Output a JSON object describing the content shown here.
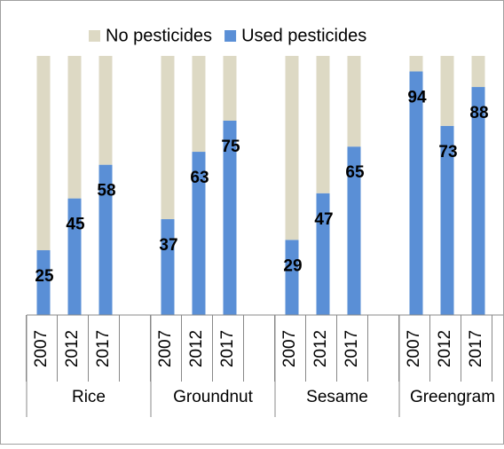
{
  "chart_data": {
    "type": "stacked_bar",
    "categories": [
      "2007",
      "2012",
      "2017",
      "2007",
      "2012",
      "2017",
      "2007",
      "2012",
      "2017",
      "2007",
      "2012",
      "2017"
    ],
    "category_groups": [
      "Rice",
      "Groundnut",
      "Sesame",
      "Greengram"
    ],
    "series": [
      {
        "name": "No pesticides",
        "color": "#ddd9c4",
        "values": [
          75,
          55,
          42,
          63,
          37,
          25,
          71,
          53,
          35,
          6,
          27,
          12
        ]
      },
      {
        "name": "Used pesticides",
        "color": "#5a8fd6",
        "values": [
          25,
          45,
          58,
          37,
          63,
          75,
          29,
          47,
          65,
          94,
          73,
          88
        ],
        "data_labels": true
      }
    ],
    "ylim": [
      0,
      100
    ],
    "legend": "top"
  }
}
